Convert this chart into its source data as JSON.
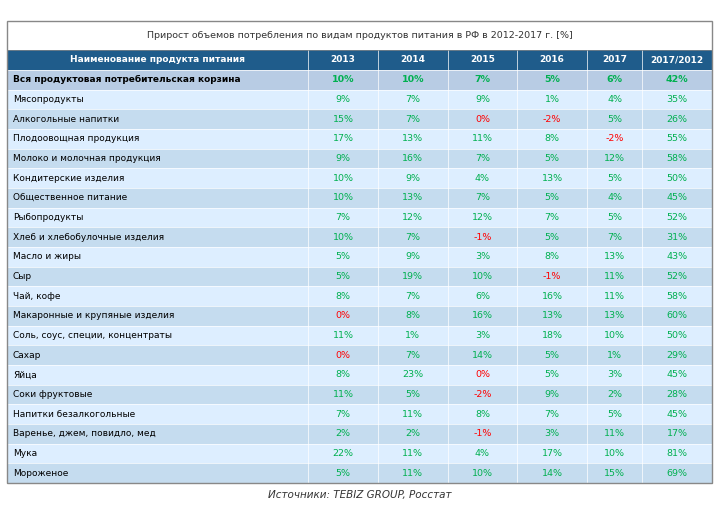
{
  "title": "Прирост объемов потребления по видам продуктов питания в РФ в 2012-2017 г. [%]",
  "source": "Источники: TEBIZ GROUP, Росстат",
  "columns": [
    "Наименование продукта питания",
    "2013",
    "2014",
    "2015",
    "2016",
    "2017",
    "2017/2012"
  ],
  "header_bg": "#1F5C8B",
  "header_text": "#FFFFFF",
  "row0_bg": "#B8CCE4",
  "row0_text": "#000000",
  "row0_bold": true,
  "odd_row_bg": "#DDEEFF",
  "even_row_bg": "#C5DCEF",
  "title_bg": "#FFFFFF",
  "title_text": "#333333",
  "green_color": "#00B050",
  "red_color": "#FF0000",
  "black_color": "#000000",
  "rows": [
    [
      "Вся продуктовая потребительская корзина",
      "10%",
      "10%",
      "7%",
      "5%",
      "6%",
      "42%"
    ],
    [
      "Мясопродукты",
      "9%",
      "7%",
      "9%",
      "1%",
      "4%",
      "35%"
    ],
    [
      "Алкогольные напитки",
      "15%",
      "7%",
      "0%",
      "-2%",
      "5%",
      "26%"
    ],
    [
      "Плодоовощная продукция",
      "17%",
      "13%",
      "11%",
      "8%",
      "-2%",
      "55%"
    ],
    [
      "Молоко и молочная продукция",
      "9%",
      "16%",
      "7%",
      "5%",
      "12%",
      "58%"
    ],
    [
      "Кондитерские изделия",
      "10%",
      "9%",
      "4%",
      "13%",
      "5%",
      "50%"
    ],
    [
      "Общественное питание",
      "10%",
      "13%",
      "7%",
      "5%",
      "4%",
      "45%"
    ],
    [
      "Рыбопродукты",
      "7%",
      "12%",
      "12%",
      "7%",
      "5%",
      "52%"
    ],
    [
      "Хлеб и хлебобулочные изделия",
      "10%",
      "7%",
      "-1%",
      "5%",
      "7%",
      "31%"
    ],
    [
      "Масло и жиры",
      "5%",
      "9%",
      "3%",
      "8%",
      "13%",
      "43%"
    ],
    [
      "Сыр",
      "5%",
      "19%",
      "10%",
      "-1%",
      "11%",
      "52%"
    ],
    [
      "Чай, кофе",
      "8%",
      "7%",
      "6%",
      "16%",
      "11%",
      "58%"
    ],
    [
      "Макаронные и крупяные изделия",
      "0%",
      "8%",
      "16%",
      "13%",
      "13%",
      "60%"
    ],
    [
      "Соль, соус, специи, концентраты",
      "11%",
      "1%",
      "3%",
      "18%",
      "10%",
      "50%"
    ],
    [
      "Сахар",
      "0%",
      "7%",
      "14%",
      "5%",
      "1%",
      "29%"
    ],
    [
      "Яйца",
      "8%",
      "23%",
      "0%",
      "5%",
      "3%",
      "45%"
    ],
    [
      "Соки фруктовые",
      "11%",
      "5%",
      "-2%",
      "9%",
      "2%",
      "28%"
    ],
    [
      "Напитки безалкогольные",
      "7%",
      "11%",
      "8%",
      "7%",
      "5%",
      "45%"
    ],
    [
      "Варенье, джем, повидло, мед",
      "2%",
      "2%",
      "-1%",
      "3%",
      "11%",
      "17%"
    ],
    [
      "Мука",
      "22%",
      "11%",
      "4%",
      "17%",
      "10%",
      "81%"
    ],
    [
      "Мороженое",
      "5%",
      "11%",
      "10%",
      "14%",
      "15%",
      "69%"
    ]
  ]
}
